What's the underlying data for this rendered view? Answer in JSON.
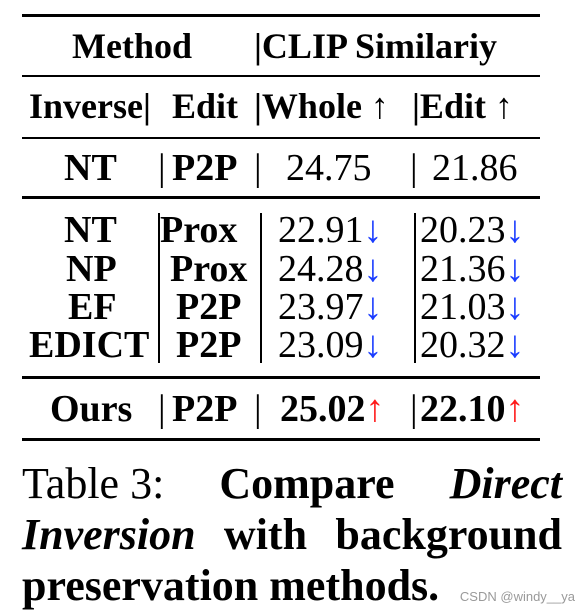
{
  "table": {
    "header1": {
      "method": "Method",
      "clip": "|CLIP Similariy"
    },
    "header2": {
      "inverse": "Inverse|",
      "edit": "Edit",
      "whole": "|Whole ↑",
      "edit_col": "|Edit ↑"
    },
    "row_baseline": {
      "inverse": "NT",
      "sep": "|",
      "edit": "P2P",
      "bar": "|",
      "whole": "24.75",
      "bar2": "|",
      "edit_val": "21.86"
    },
    "rows": [
      {
        "inverse": "NT",
        "edit": "Prox",
        "whole": "22.91",
        "edit_val": "20.23",
        "arrow": "↓"
      },
      {
        "inverse": "NP",
        "edit": "Prox",
        "whole": "24.28",
        "edit_val": "21.36",
        "arrow": "↓"
      },
      {
        "inverse": "EF",
        "edit": "P2P",
        "whole": "23.97",
        "edit_val": "21.03",
        "arrow": "↓"
      },
      {
        "inverse": "EDICT",
        "edit": "P2P",
        "whole": "23.09",
        "edit_val": "20.32",
        "arrow": "↓"
      }
    ],
    "row_ours": {
      "inverse": "Ours",
      "sep": "|",
      "edit": "P2P",
      "bar": "|",
      "whole": "25.02",
      "bar2": "|",
      "edit_val": "22.10",
      "arrow": "↑"
    },
    "colors": {
      "down": "#1a3cff",
      "up": "#ff1a1a"
    }
  },
  "caption": {
    "label": "Table 3:",
    "w1": "Compare",
    "w2": "Direct",
    "w3": "Inversion",
    "w4": "with",
    "w5": "background",
    "w6": "preservation methods."
  },
  "watermark": "CSDN @windy__ya"
}
